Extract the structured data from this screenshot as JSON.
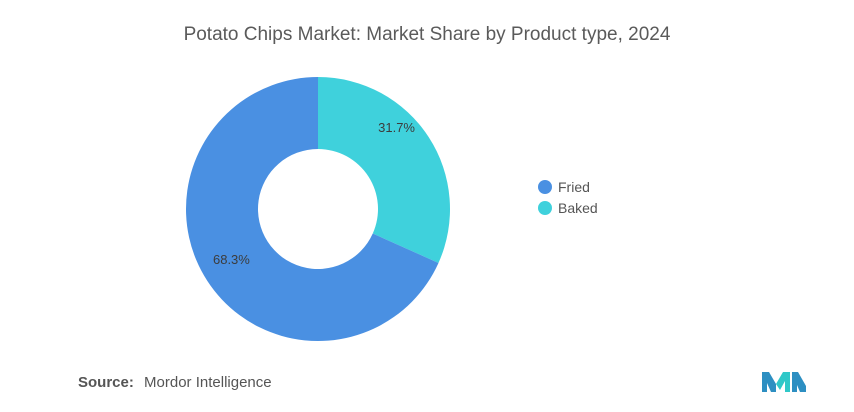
{
  "chart_data": {
    "type": "pie",
    "title": "Potato Chips Market: Market Share by Product type, 2024",
    "categories": [
      "Fried",
      "Baked"
    ],
    "values": [
      68.3,
      31.7
    ],
    "data_labels": [
      "68.3%",
      "31.7%"
    ],
    "colors": [
      "#4a90e2",
      "#3fd1dc"
    ],
    "donut": true,
    "legend": "right"
  },
  "source": {
    "label": "Source:",
    "text": "Mordor Intelligence"
  },
  "logo": {
    "icon": "mordor-intelligence-logo-icon",
    "colors": [
      "#2d8fc2",
      "#2fc8c8"
    ]
  }
}
